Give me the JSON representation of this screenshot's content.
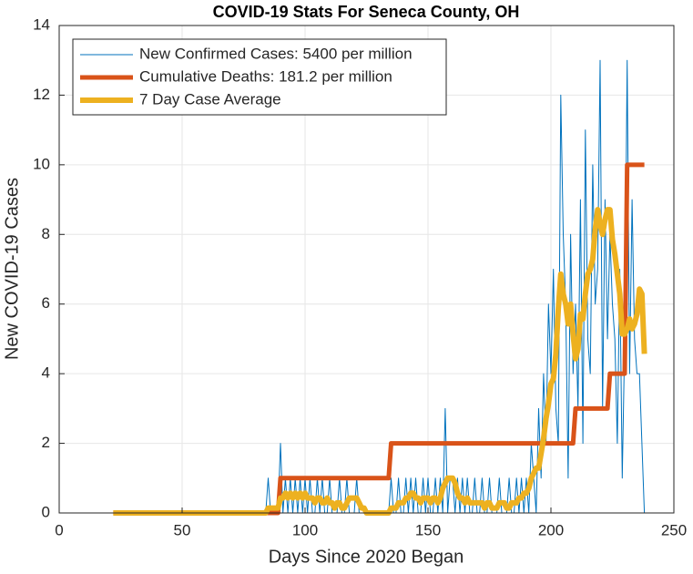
{
  "chart_data": {
    "type": "line",
    "title": "COVID-19 Stats For Seneca County, OH",
    "xlabel": "Days Since 2020 Began",
    "ylabel": "New COVID-19 Cases",
    "xlim": [
      0,
      250
    ],
    "xticks": [
      0,
      50,
      100,
      150,
      200,
      250
    ],
    "ylim": [
      0,
      14
    ],
    "yticks": [
      0,
      2,
      4,
      6,
      8,
      10,
      12,
      14
    ],
    "grid": true,
    "legend": "northwest",
    "x": [
      22,
      23,
      24,
      25,
      26,
      27,
      28,
      29,
      30,
      31,
      32,
      33,
      34,
      35,
      36,
      37,
      38,
      39,
      40,
      41,
      42,
      43,
      44,
      45,
      46,
      47,
      48,
      49,
      50,
      51,
      52,
      53,
      54,
      55,
      56,
      57,
      58,
      59,
      60,
      61,
      62,
      63,
      64,
      65,
      66,
      67,
      68,
      69,
      70,
      71,
      72,
      73,
      74,
      75,
      76,
      77,
      78,
      79,
      80,
      81,
      82,
      83,
      84,
      85,
      86,
      87,
      88,
      89,
      90,
      91,
      92,
      93,
      94,
      95,
      96,
      97,
      98,
      99,
      100,
      101,
      102,
      103,
      104,
      105,
      106,
      107,
      108,
      109,
      110,
      111,
      112,
      113,
      114,
      115,
      116,
      117,
      118,
      119,
      120,
      121,
      122,
      123,
      124,
      125,
      126,
      127,
      128,
      129,
      130,
      131,
      132,
      133,
      134,
      135,
      136,
      137,
      138,
      139,
      140,
      141,
      142,
      143,
      144,
      145,
      146,
      147,
      148,
      149,
      150,
      151,
      152,
      153,
      154,
      155,
      156,
      157,
      158,
      159,
      160,
      161,
      162,
      163,
      164,
      165,
      166,
      167,
      168,
      169,
      170,
      171,
      172,
      173,
      174,
      175,
      176,
      177,
      178,
      179,
      180,
      181,
      182,
      183,
      184,
      185,
      186,
      187,
      188,
      189,
      190,
      191,
      192,
      193,
      194,
      195,
      196,
      197,
      198,
      199,
      200,
      201,
      202,
      203,
      204,
      205,
      206,
      207,
      208,
      209,
      210,
      211,
      212,
      213,
      214,
      215,
      216,
      217,
      218,
      219,
      220,
      221,
      222,
      223,
      224,
      225,
      226,
      227,
      228,
      229,
      230,
      231,
      232,
      233,
      234,
      235,
      236,
      237,
      238
    ],
    "series": [
      {
        "name": "New Confirmed Cases: 5400 per million",
        "color": "#0072bd",
        "width": 1,
        "values": [
          0,
          0,
          0,
          0,
          0,
          0,
          0,
          0,
          0,
          0,
          0,
          0,
          0,
          0,
          0,
          0,
          0,
          0,
          0,
          0,
          0,
          0,
          0,
          0,
          0,
          0,
          0,
          0,
          0,
          0,
          0,
          0,
          0,
          0,
          0,
          0,
          0,
          0,
          0,
          0,
          0,
          0,
          0,
          0,
          0,
          0,
          0,
          0,
          0,
          0,
          0,
          0,
          0,
          0,
          0,
          0,
          0,
          0,
          0,
          0,
          0,
          0,
          0,
          1,
          0,
          0,
          0,
          0,
          2,
          0,
          1,
          0,
          1,
          0,
          1,
          0,
          1,
          0,
          1,
          0,
          1,
          0,
          0,
          1,
          0,
          1,
          0,
          0,
          1,
          0,
          0,
          0,
          1,
          0,
          0,
          1,
          0,
          0,
          0,
          1,
          0,
          0,
          0,
          0,
          0,
          0,
          0,
          0,
          0,
          0,
          0,
          0,
          0,
          1,
          0,
          0,
          1,
          0,
          0,
          1,
          0,
          1,
          0,
          1,
          0,
          0,
          1,
          0,
          1,
          0,
          0,
          1,
          0,
          1,
          0,
          3,
          0,
          1,
          1,
          0,
          1,
          0,
          1,
          0,
          1,
          0,
          0,
          1,
          0,
          0,
          1,
          0,
          0,
          1,
          0,
          0,
          0,
          1,
          0,
          0,
          0,
          1,
          0,
          0,
          1,
          0,
          1,
          0,
          1,
          0,
          2,
          1,
          0,
          3,
          1,
          4,
          2,
          6,
          4,
          7,
          3,
          2,
          12,
          8,
          6,
          1,
          8,
          4,
          6,
          3,
          9,
          2,
          11,
          5,
          4,
          10,
          6,
          7,
          13,
          3,
          9,
          5,
          8,
          6,
          5,
          2,
          7,
          1,
          5,
          13,
          4,
          9,
          5,
          4,
          4,
          2,
          0
        ]
      },
      {
        "name": "Cumulative Deaths: 181.2 per million",
        "color": "#d95319",
        "width": 5,
        "values": [
          0,
          0,
          0,
          0,
          0,
          0,
          0,
          0,
          0,
          0,
          0,
          0,
          0,
          0,
          0,
          0,
          0,
          0,
          0,
          0,
          0,
          0,
          0,
          0,
          0,
          0,
          0,
          0,
          0,
          0,
          0,
          0,
          0,
          0,
          0,
          0,
          0,
          0,
          0,
          0,
          0,
          0,
          0,
          0,
          0,
          0,
          0,
          0,
          0,
          0,
          0,
          0,
          0,
          0,
          0,
          0,
          0,
          0,
          0,
          0,
          0,
          0,
          0,
          0,
          0,
          0,
          0,
          0,
          1,
          1,
          1,
          1,
          1,
          1,
          1,
          1,
          1,
          1,
          1,
          1,
          1,
          1,
          1,
          1,
          1,
          1,
          1,
          1,
          1,
          1,
          1,
          1,
          1,
          1,
          1,
          1,
          1,
          1,
          1,
          1,
          1,
          1,
          1,
          1,
          1,
          1,
          1,
          1,
          1,
          1,
          1,
          1,
          1,
          2,
          2,
          2,
          2,
          2,
          2,
          2,
          2,
          2,
          2,
          2,
          2,
          2,
          2,
          2,
          2,
          2,
          2,
          2,
          2,
          2,
          2,
          2,
          2,
          2,
          2,
          2,
          2,
          2,
          2,
          2,
          2,
          2,
          2,
          2,
          2,
          2,
          2,
          2,
          2,
          2,
          2,
          2,
          2,
          2,
          2,
          2,
          2,
          2,
          2,
          2,
          2,
          2,
          2,
          2,
          2,
          2,
          2,
          2,
          2,
          2,
          2,
          2,
          2,
          2,
          2,
          2,
          2,
          2,
          2,
          2,
          2,
          2,
          2,
          2,
          3,
          3,
          3,
          3,
          3,
          3,
          3,
          3,
          3,
          3,
          3,
          3,
          3,
          3,
          4,
          4,
          4,
          4,
          4,
          4,
          4,
          10,
          10,
          10,
          10,
          10,
          10,
          10,
          10
        ]
      },
      {
        "name": "7 Day Case Average",
        "color": "#edb120",
        "width": 6,
        "values": [
          0,
          0,
          0,
          0,
          0,
          0,
          0,
          0,
          0,
          0,
          0,
          0,
          0,
          0,
          0,
          0,
          0,
          0,
          0,
          0,
          0,
          0,
          0,
          0,
          0,
          0,
          0,
          0,
          0,
          0,
          0,
          0,
          0,
          0,
          0,
          0,
          0,
          0,
          0,
          0,
          0,
          0,
          0,
          0,
          0,
          0,
          0,
          0,
          0,
          0,
          0,
          0,
          0,
          0,
          0,
          0,
          0,
          0,
          0,
          0,
          0,
          0,
          0,
          0.14,
          0.14,
          0.14,
          0.14,
          0.14,
          0.43,
          0.43,
          0.57,
          0.43,
          0.57,
          0.43,
          0.57,
          0.43,
          0.57,
          0.43,
          0.57,
          0.43,
          0.43,
          0.43,
          0.29,
          0.43,
          0.43,
          0.29,
          0.29,
          0.43,
          0.29,
          0.29,
          0.14,
          0.29,
          0.29,
          0.14,
          0.14,
          0.29,
          0.43,
          0.43,
          0.43,
          0.43,
          0.29,
          0.14,
          0.14,
          0,
          0,
          0,
          0,
          0,
          0,
          0,
          0,
          0,
          0,
          0.14,
          0.14,
          0.14,
          0.29,
          0.29,
          0.29,
          0.43,
          0.43,
          0.57,
          0.57,
          0.43,
          0.43,
          0.29,
          0.43,
          0.43,
          0.43,
          0.29,
          0.43,
          0.43,
          0.29,
          0.43,
          0.71,
          0.86,
          1,
          1,
          1,
          0.86,
          0.57,
          0.43,
          0.43,
          0.29,
          0.43,
          0.29,
          0.29,
          0.29,
          0.29,
          0.29,
          0.29,
          0.14,
          0.29,
          0.29,
          0.14,
          0.14,
          0.14,
          0.29,
          0.29,
          0.29,
          0.14,
          0.14,
          0.29,
          0.29,
          0.29,
          0.43,
          0.43,
          0.57,
          0.57,
          0.71,
          1,
          1.14,
          1.29,
          1.29,
          1.71,
          2.14,
          2.71,
          3.14,
          3.71,
          3.86,
          4.57,
          5.86,
          6.86,
          6.29,
          6,
          5.43,
          6,
          5.14,
          4.43,
          4.71,
          5.71,
          5.57,
          6.29,
          6.86,
          7,
          7.29,
          8.14,
          8.71,
          8.29,
          8,
          8.43,
          8.71,
          8.71,
          7.86,
          7.43,
          6.86,
          6.29,
          5.14,
          5.14,
          5.29,
          5.57,
          5.29,
          5.43,
          5.71,
          6.43,
          6.29,
          4.57
        ]
      }
    ]
  }
}
